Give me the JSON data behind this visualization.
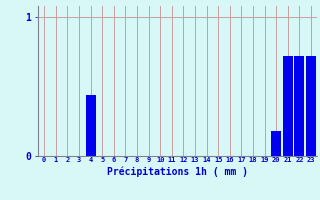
{
  "hours": [
    0,
    1,
    2,
    3,
    4,
    5,
    6,
    7,
    8,
    9,
    10,
    11,
    12,
    13,
    14,
    15,
    16,
    17,
    18,
    19,
    20,
    21,
    22,
    23
  ],
  "values": [
    0,
    0,
    0,
    0,
    0.44,
    0,
    0,
    0,
    0,
    0,
    0,
    0,
    0,
    0,
    0,
    0,
    0,
    0,
    0,
    0,
    0.18,
    0.72,
    0.72,
    0.72
  ],
  "bar_color": "#0000ee",
  "background_color": "#d8f8f8",
  "grid_color_v": "#c8a0a0",
  "grid_color_h": "#c8a0a0",
  "axis_color": "#808090",
  "text_color": "#0000cc",
  "xlabel": "Précipitations 1h ( mm )",
  "ylim": [
    0,
    1.08
  ],
  "yticks": [
    0,
    1
  ],
  "ytick_labels": [
    "0",
    "1"
  ],
  "xlim": [
    -0.5,
    23.5
  ]
}
